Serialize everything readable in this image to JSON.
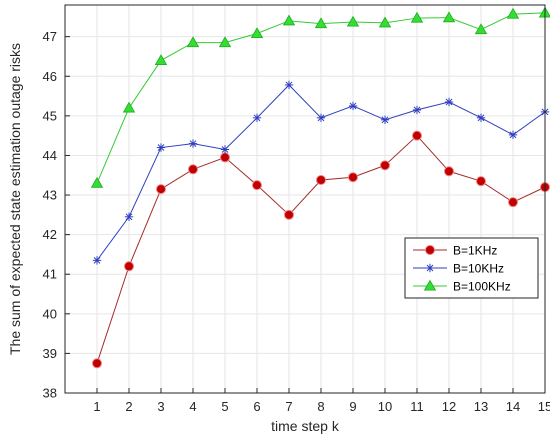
{
  "chart_data": {
    "type": "line",
    "title": "",
    "xlabel": "time step k",
    "ylabel": "The sum of expected state estimation outage risks",
    "x": [
      1,
      2,
      3,
      4,
      5,
      6,
      7,
      8,
      9,
      10,
      11,
      12,
      13,
      14,
      15
    ],
    "xlim": [
      0,
      15
    ],
    "ylim": [
      38,
      47.8
    ],
    "xticks": [
      "1",
      "2",
      "3",
      "4",
      "5",
      "6",
      "7",
      "8",
      "9",
      "10",
      "11",
      "12",
      "13",
      "14",
      "15"
    ],
    "yticks": [
      "38",
      "39",
      "40",
      "41",
      "42",
      "43",
      "44",
      "45",
      "46",
      "47"
    ],
    "grid": true,
    "legend_position": "center-right",
    "series": [
      {
        "name": "B=1KHz",
        "color": "#a52a2a",
        "marker": "circle",
        "marker_color": "#c00000",
        "values": [
          38.75,
          41.2,
          43.15,
          43.65,
          43.95,
          43.25,
          42.5,
          43.38,
          43.45,
          43.75,
          44.5,
          43.6,
          43.35,
          42.82,
          43.2
        ]
      },
      {
        "name": "B=10KHz",
        "color": "#2f3fbf",
        "marker": "asterisk",
        "marker_color": "#2f3fbf",
        "values": [
          41.35,
          42.45,
          44.2,
          44.3,
          44.15,
          44.95,
          45.78,
          44.95,
          45.25,
          44.9,
          45.15,
          45.35,
          44.95,
          44.52,
          45.1
        ]
      },
      {
        "name": "B=100KHz",
        "color": "#33cc33",
        "marker": "triangle",
        "marker_color": "#33dd33",
        "values": [
          43.3,
          45.2,
          46.4,
          46.85,
          46.85,
          47.08,
          47.4,
          47.33,
          47.37,
          47.35,
          47.47,
          47.48,
          47.18,
          47.57,
          47.6
        ]
      }
    ]
  }
}
